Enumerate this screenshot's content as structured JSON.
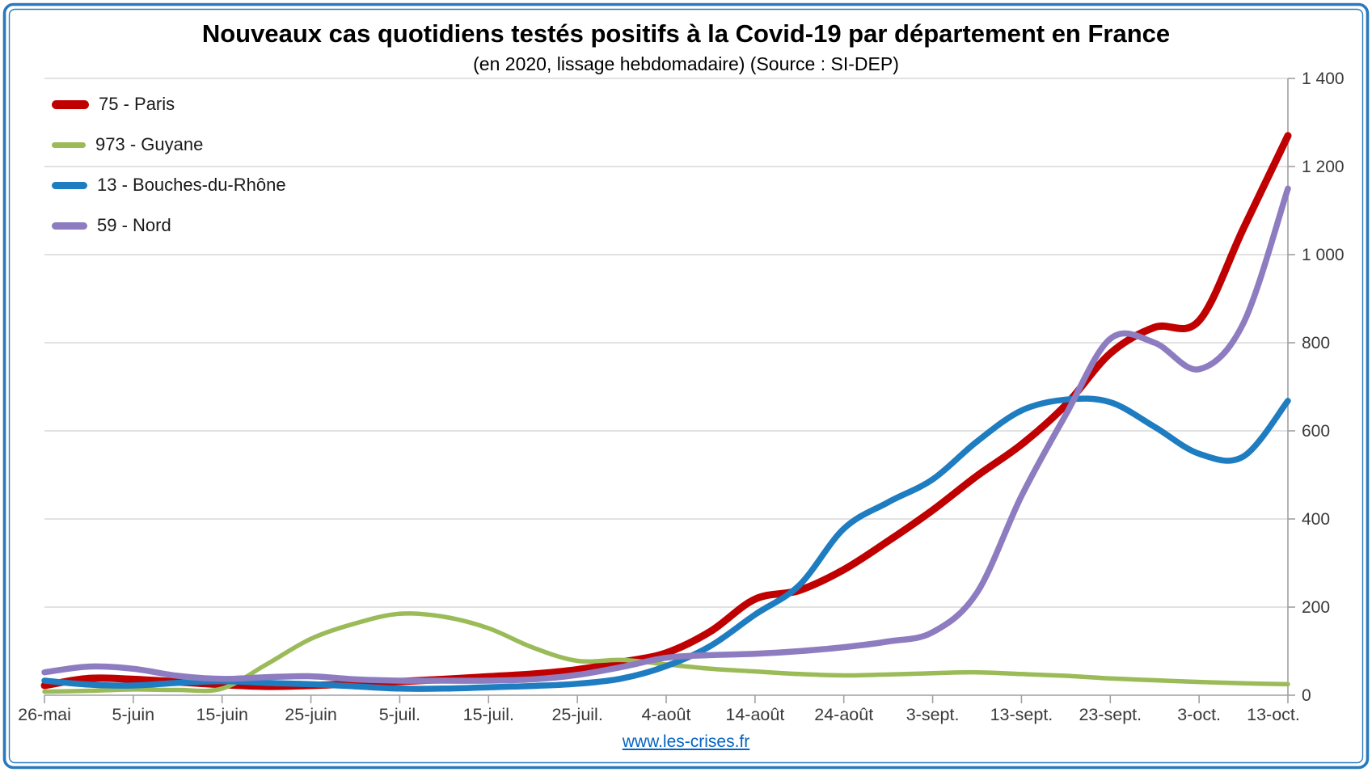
{
  "title": "Nouveaux cas quotidiens testés positifs à la Covid-19 par département en France",
  "subtitle": "(en 2020, lissage hebdomadaire) (Source : SI-DEP)",
  "footer": {
    "link_text": "www.les-crises.fr",
    "link_color": "#0563C1"
  },
  "colors": {
    "frame_border": "#2979BE",
    "grid": "#D9D9D9",
    "axis": "#A0A0A0",
    "tick_label": "#3A3A3A"
  },
  "chart_data": {
    "type": "line",
    "title": "Nouveaux cas quotidiens testés positifs à la Covid-19 par département en France",
    "subtitle": "(en 2020, lissage hebdomadaire) (Source : SI-DEP)",
    "grid": true,
    "legend_position": "top-left",
    "x_range": [
      0,
      140
    ],
    "y_range": [
      0,
      1400
    ],
    "x_step_days": 5,
    "x_tick_interval_days": 10,
    "x_tick_labels": [
      "26-mai",
      "5-juin",
      "15-juin",
      "25-juin",
      "5-juil.",
      "15-juil.",
      "25-juil.",
      "4-août",
      "14-août",
      "24-août",
      "3-sept.",
      "13-sept.",
      "23-sept.",
      "3-oct.",
      "13-oct."
    ],
    "y_ticks": [
      {
        "value": 0,
        "label": "0"
      },
      {
        "value": 200,
        "label": "200"
      },
      {
        "value": 400,
        "label": "400"
      },
      {
        "value": 600,
        "label": "600"
      },
      {
        "value": 800,
        "label": "800"
      },
      {
        "value": 1000,
        "label": "1 000"
      },
      {
        "value": 1200,
        "label": "1 200"
      },
      {
        "value": 1400,
        "label": "1 400"
      }
    ],
    "series": [
      {
        "name": "75 - Paris",
        "color": "#C00000",
        "line_width": 9,
        "swatch": {
          "w": 46,
          "h": 11
        },
        "values": [
          22,
          38,
          36,
          30,
          24,
          20,
          22,
          26,
          31,
          36,
          42,
          48,
          58,
          75,
          96,
          145,
          218,
          238,
          285,
          350,
          420,
          498,
          569,
          659,
          776,
          835,
          850,
          1060,
          1270
        ]
      },
      {
        "name": "973 - Guyane",
        "color": "#9BBB59",
        "line_width": 5.5,
        "swatch": {
          "w": 42,
          "h": 7
        },
        "values": [
          8,
          10,
          13,
          12,
          15,
          70,
          128,
          163,
          185,
          178,
          152,
          108,
          78,
          80,
          70,
          60,
          54,
          48,
          45,
          47,
          50,
          52,
          48,
          44,
          38,
          34,
          30,
          27,
          25
        ]
      },
      {
        "name": "13 - Bouches-du-Rhône",
        "color": "#1E7CC1",
        "line_width": 7.5,
        "swatch": {
          "w": 44,
          "h": 9
        },
        "values": [
          33,
          24,
          22,
          28,
          32,
          28,
          25,
          20,
          15,
          15,
          18,
          21,
          26,
          38,
          66,
          112,
          183,
          250,
          378,
          438,
          490,
          576,
          646,
          671,
          665,
          609,
          548,
          542,
          668
        ]
      },
      {
        "name": "59 - Nord",
        "color": "#8E7CC0",
        "line_width": 7.5,
        "swatch": {
          "w": 44,
          "h": 9
        },
        "values": [
          52,
          65,
          60,
          44,
          37,
          41,
          43,
          36,
          33,
          33,
          33,
          36,
          46,
          64,
          85,
          91,
          94,
          100,
          109,
          122,
          143,
          233,
          452,
          637,
          809,
          800,
          740,
          845,
          1150
        ]
      }
    ]
  }
}
